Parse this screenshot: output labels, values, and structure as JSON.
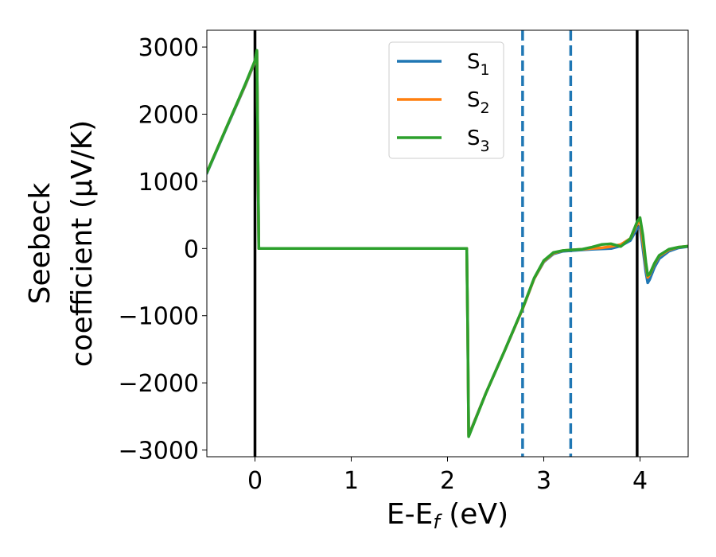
{
  "chart_data": {
    "type": "line",
    "xlabel": "E-E",
    "xlabel_sub": "f",
    "xlabel_unit": " (eV)",
    "ylabel_line1": "Seebeck",
    "ylabel_line2": "coefficient  (μV/K)",
    "xlim": [
      -0.5,
      4.5
    ],
    "ylim": [
      -3100,
      3250
    ],
    "xticks": [
      0,
      1,
      2,
      3,
      4
    ],
    "xtick_labels": [
      "0",
      "1",
      "2",
      "3",
      "4"
    ],
    "yticks": [
      3000,
      2000,
      1000,
      0,
      -1000,
      -2000,
      -3000
    ],
    "ytick_labels": [
      "3000",
      "2000",
      "1000",
      "0",
      "−1000",
      "−2000",
      "−3000"
    ],
    "grid": false,
    "legend_position": "top-center",
    "vlines": [
      {
        "x": 0,
        "style": "solid",
        "color": "#000000"
      },
      {
        "x": 3.97,
        "style": "solid",
        "color": "#000000"
      },
      {
        "x": 2.78,
        "style": "dashed",
        "color": "#1f77b4"
      },
      {
        "x": 3.28,
        "style": "dashed",
        "color": "#1f77b4"
      }
    ],
    "series": [
      {
        "name": "S",
        "sub": "1",
        "color": "#1f77b4",
        "x": [
          -0.5,
          -0.3,
          -0.1,
          0.0,
          0.02,
          0.03,
          0.04,
          0.5,
          1.0,
          1.5,
          2.0,
          2.2,
          2.21,
          2.22,
          2.4,
          2.6,
          2.78,
          2.9,
          3.0,
          3.1,
          3.2,
          3.3,
          3.4,
          3.5,
          3.6,
          3.7,
          3.8,
          3.9,
          3.97,
          4.0,
          4.03,
          4.06,
          4.08,
          4.1,
          4.15,
          4.2,
          4.3,
          4.4,
          4.5
        ],
        "y": [
          1120,
          1780,
          2430,
          2780,
          2920,
          1500,
          0,
          0,
          0,
          0,
          0,
          0,
          -1200,
          -2780,
          -2150,
          -1500,
          -900,
          -450,
          -200,
          -80,
          -40,
          -30,
          -20,
          -10,
          -5,
          0,
          40,
          120,
          300,
          330,
          0,
          -350,
          -510,
          -460,
          -280,
          -150,
          -40,
          10,
          30
        ]
      },
      {
        "name": "S",
        "sub": "2",
        "color": "#ff7f0e",
        "x": [
          -0.5,
          -0.3,
          -0.1,
          0.0,
          0.02,
          0.03,
          0.04,
          0.5,
          1.0,
          1.5,
          2.0,
          2.2,
          2.21,
          2.22,
          2.4,
          2.6,
          2.78,
          2.9,
          3.0,
          3.1,
          3.2,
          3.3,
          3.4,
          3.5,
          3.6,
          3.7,
          3.8,
          3.9,
          3.97,
          4.0,
          4.03,
          4.06,
          4.08,
          4.1,
          4.15,
          4.2,
          4.3,
          4.4,
          4.5
        ],
        "y": [
          1130,
          1790,
          2440,
          2790,
          2940,
          1500,
          0,
          0,
          0,
          0,
          0,
          0,
          -1200,
          -2790,
          -2150,
          -1500,
          -900,
          -450,
          -190,
          -70,
          -30,
          -20,
          -10,
          0,
          10,
          30,
          60,
          150,
          370,
          420,
          100,
          -250,
          -430,
          -390,
          -230,
          -110,
          -20,
          20,
          35
        ]
      },
      {
        "name": "S",
        "sub": "3",
        "color": "#2ca02c",
        "x": [
          -0.5,
          -0.3,
          -0.1,
          0.0,
          0.02,
          0.03,
          0.04,
          0.5,
          1.0,
          1.5,
          2.0,
          2.2,
          2.21,
          2.22,
          2.4,
          2.6,
          2.78,
          2.9,
          3.0,
          3.1,
          3.2,
          3.3,
          3.4,
          3.5,
          3.6,
          3.7,
          3.8,
          3.9,
          3.97,
          4.0,
          4.03,
          4.06,
          4.08,
          4.1,
          4.15,
          4.2,
          4.3,
          4.4,
          4.5
        ],
        "y": [
          1130,
          1790,
          2450,
          2800,
          2950,
          1500,
          0,
          0,
          0,
          0,
          0,
          0,
          -1200,
          -2800,
          -2150,
          -1500,
          -890,
          -440,
          -180,
          -60,
          -30,
          -20,
          -10,
          20,
          60,
          70,
          30,
          150,
          400,
          460,
          200,
          -200,
          -400,
          -380,
          -220,
          -100,
          -10,
          20,
          35
        ]
      }
    ]
  }
}
